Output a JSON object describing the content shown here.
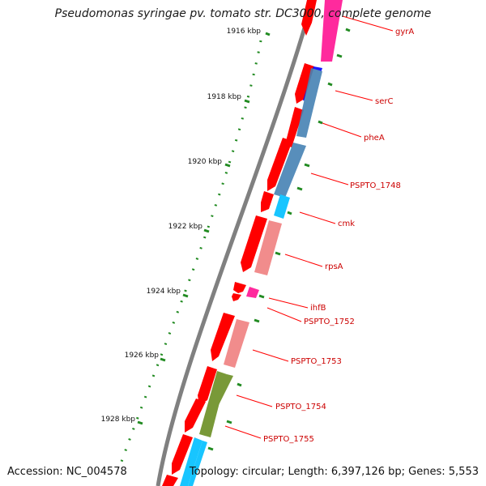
{
  "title": "Pseudomonas syringae pv. tomato str. DC3000, complete genome",
  "footer": {
    "accession": "Accession: NC_004578",
    "summary": "Topology: circular; Length: 6,397,126 bp; Genes: 5,553"
  },
  "ruler": [
    "1916 kbp",
    "1918 kbp",
    "1920 kbp",
    "1922 kbp",
    "1924 kbp",
    "1926 kbp",
    "1928 kbp"
  ],
  "genes": [
    {
      "name": "gyrA",
      "color": "#ff1493"
    },
    {
      "name": "serC",
      "color": "#0000ff"
    },
    {
      "name": "pheA",
      "color": "#4682b4"
    },
    {
      "name": "PSPTO_1748",
      "color": "#4682b4"
    },
    {
      "name": "cmk",
      "color": "#00bfff"
    },
    {
      "name": "rpsA",
      "color": "#f08080"
    },
    {
      "name": "ihfB",
      "color": "#ff1493"
    },
    {
      "name": "PSPTO_1752",
      "color": "#ff1493"
    },
    {
      "name": "PSPTO_1753",
      "color": "#f08080"
    },
    {
      "name": "PSPTO_1754",
      "color": "#6b8e23"
    },
    {
      "name": "PSPTO_1755",
      "color": "#00bfff"
    }
  ],
  "colors": {
    "backbone": "#808080",
    "cds": "#ff0000",
    "gc_tick": "#228b22",
    "label_line": "#ff0000",
    "label_text": "#cc0000"
  }
}
